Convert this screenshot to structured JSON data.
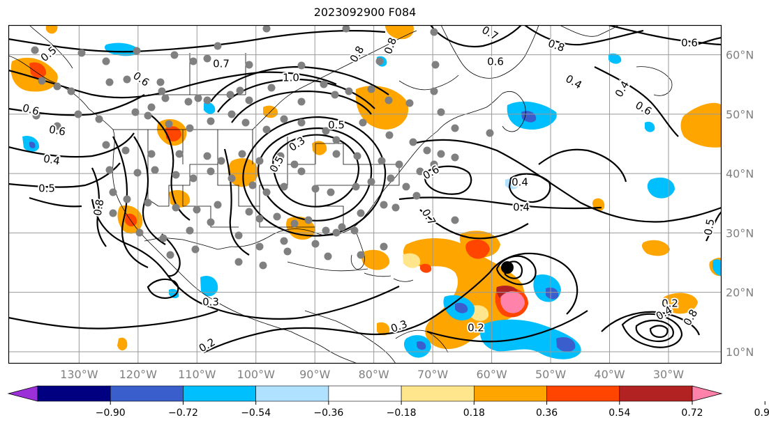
{
  "title": "2023092900 F084",
  "map": {
    "projection": "cylindrical",
    "extent": {
      "lon": [
        -142,
        -21
      ],
      "lat": [
        8,
        65
      ]
    },
    "gridline_color": "#999999",
    "lon_ticks": [
      {
        "lon": -130,
        "label": "130°W"
      },
      {
        "lon": -120,
        "label": "120°W"
      },
      {
        "lon": -110,
        "label": "110°W"
      },
      {
        "lon": -100,
        "label": "100°W"
      },
      {
        "lon": -90,
        "label": "90°W"
      },
      {
        "lon": -80,
        "label": "80°W"
      },
      {
        "lon": -70,
        "label": "70°W"
      },
      {
        "lon": -60,
        "label": "60°W"
      },
      {
        "lon": -50,
        "label": "50°W"
      },
      {
        "lon": -40,
        "label": "40°W"
      },
      {
        "lon": -30,
        "label": "30°W"
      }
    ],
    "lat_ticks": [
      {
        "lat": 60,
        "label": "60°N"
      },
      {
        "lat": 50,
        "label": "50°N"
      },
      {
        "lat": 40,
        "label": "40°N"
      },
      {
        "lat": 30,
        "label": "30°N"
      },
      {
        "lat": 20,
        "label": "20°N"
      },
      {
        "lat": 10,
        "label": "10°N"
      }
    ],
    "contour_labels": [
      "0.5",
      "0.6",
      "0.7",
      "0.6",
      "0.6",
      "0.4",
      "0.5",
      "0.8",
      "0.3",
      "0.2",
      "1.0",
      "0.8",
      "0.8",
      "0.7",
      "0.8",
      "0.6",
      "0.5",
      "0.3",
      "0.5",
      "0.6",
      "0.4",
      "0.7",
      "0.6",
      "0.4",
      "0.4",
      "0.6",
      "0.5",
      "0.4",
      "0.2",
      "0.3",
      "0.2",
      "0.4",
      "0.8"
    ],
    "tc_marker_color": "#000000",
    "station_marker_color": "#808080"
  },
  "colorbar": {
    "ticks": [
      "−0.90",
      "−0.72",
      "−0.54",
      "−0.36",
      "−0.18",
      "0.18",
      "0.36",
      "0.54",
      "0.72",
      "0.90"
    ],
    "colors": [
      "#9b30d9",
      "#000080",
      "#3a5fcd",
      "#00bfff",
      "#b0e2ff",
      "#ffffff",
      "#ffe68c",
      "#ffa500",
      "#ff4500",
      "#b22222",
      "#ff82ab"
    ]
  }
}
